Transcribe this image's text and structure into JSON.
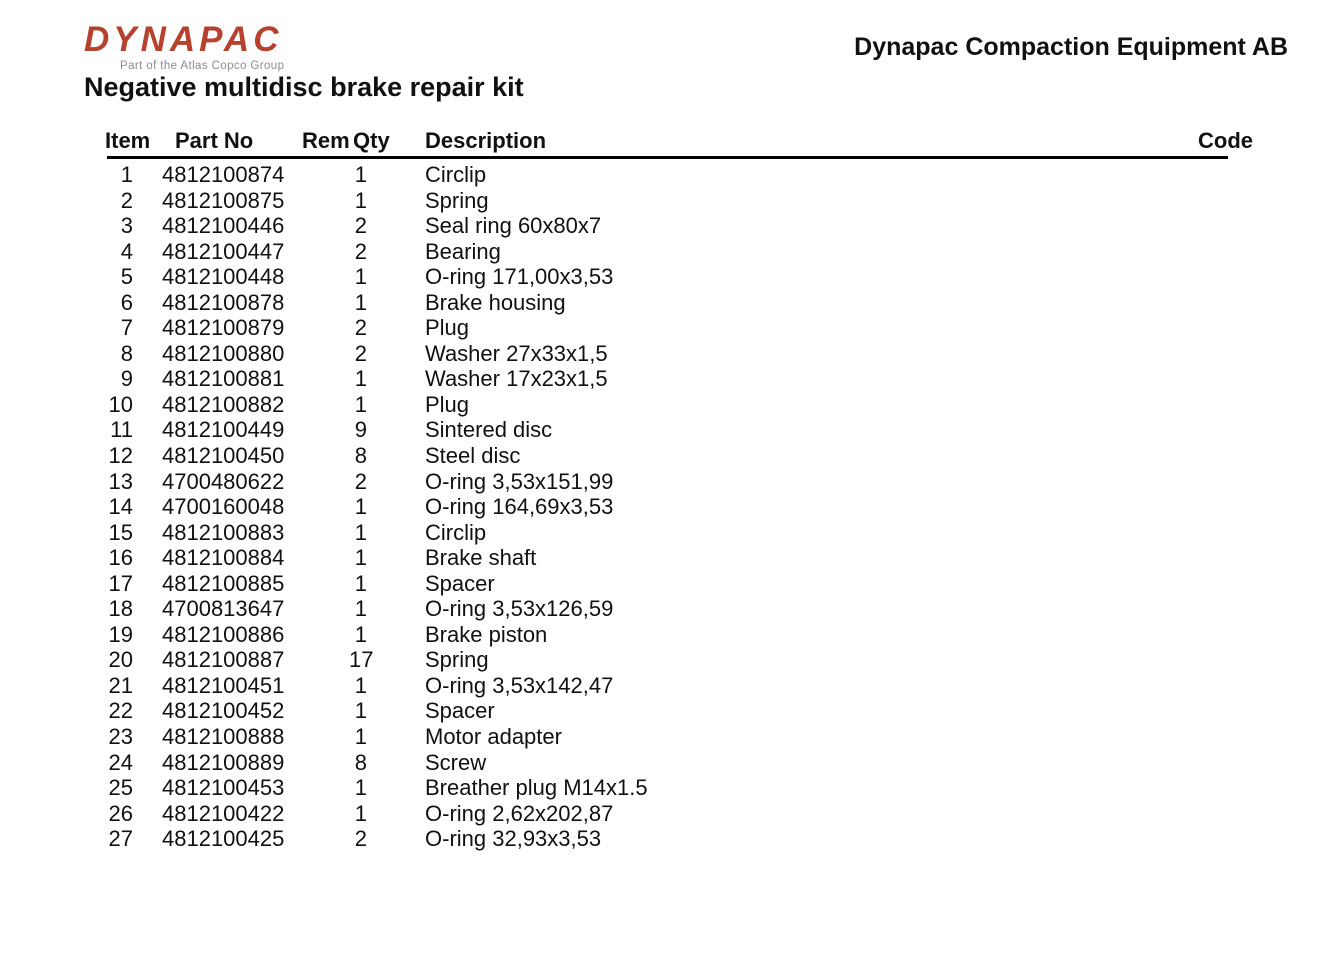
{
  "branding": {
    "logo_text": "DYNAPAC",
    "logo_tagline": "Part of the Atlas Copco Group",
    "logo_color": "#b5412e",
    "tagline_color": "#8b8b94"
  },
  "header": {
    "company": "Dynapac Compaction Equipment AB",
    "title": "Negative multidisc brake repair kit"
  },
  "table": {
    "headers": {
      "item": "Item",
      "part_no": "Part No",
      "rem": "Rem",
      "qty": "Qty",
      "description": "Description",
      "code": "Code"
    },
    "rows": [
      {
        "item": "1",
        "part_no": "4812100874",
        "rem": "",
        "qty": "1",
        "description": "Circlip",
        "code": ""
      },
      {
        "item": "2",
        "part_no": "4812100875",
        "rem": "",
        "qty": "1",
        "description": "Spring",
        "code": ""
      },
      {
        "item": "3",
        "part_no": "4812100446",
        "rem": "",
        "qty": "2",
        "description": "Seal ring 60x80x7",
        "code": ""
      },
      {
        "item": "4",
        "part_no": "4812100447",
        "rem": "",
        "qty": "2",
        "description": "Bearing",
        "code": ""
      },
      {
        "item": "5",
        "part_no": "4812100448",
        "rem": "",
        "qty": "1",
        "description": "O-ring 171,00x3,53",
        "code": ""
      },
      {
        "item": "6",
        "part_no": "4812100878",
        "rem": "",
        "qty": "1",
        "description": "Brake housing",
        "code": ""
      },
      {
        "item": "7",
        "part_no": "4812100879",
        "rem": "",
        "qty": "2",
        "description": "Plug",
        "code": ""
      },
      {
        "item": "8",
        "part_no": "4812100880",
        "rem": "",
        "qty": "2",
        "description": "Washer 27x33x1,5",
        "code": ""
      },
      {
        "item": "9",
        "part_no": "4812100881",
        "rem": "",
        "qty": "1",
        "description": "Washer 17x23x1,5",
        "code": ""
      },
      {
        "item": "10",
        "part_no": "4812100882",
        "rem": "",
        "qty": "1",
        "description": "Plug",
        "code": ""
      },
      {
        "item": "11",
        "part_no": "4812100449",
        "rem": "",
        "qty": "9",
        "description": "Sintered disc",
        "code": ""
      },
      {
        "item": "12",
        "part_no": "4812100450",
        "rem": "",
        "qty": "8",
        "description": "Steel disc",
        "code": ""
      },
      {
        "item": "13",
        "part_no": "4700480622",
        "rem": "",
        "qty": "2",
        "description": "O-ring 3,53x151,99",
        "code": ""
      },
      {
        "item": "14",
        "part_no": "4700160048",
        "rem": "",
        "qty": "1",
        "description": "O-ring 164,69x3,53",
        "code": ""
      },
      {
        "item": "15",
        "part_no": "4812100883",
        "rem": "",
        "qty": "1",
        "description": "Circlip",
        "code": ""
      },
      {
        "item": "16",
        "part_no": "4812100884",
        "rem": "",
        "qty": "1",
        "description": "Brake shaft",
        "code": ""
      },
      {
        "item": "17",
        "part_no": "4812100885",
        "rem": "",
        "qty": "1",
        "description": "Spacer",
        "code": ""
      },
      {
        "item": "18",
        "part_no": "4700813647",
        "rem": "",
        "qty": "1",
        "description": "O-ring 3,53x126,59",
        "code": ""
      },
      {
        "item": "19",
        "part_no": "4812100886",
        "rem": "",
        "qty": "1",
        "description": "Brake piston",
        "code": ""
      },
      {
        "item": "20",
        "part_no": "4812100887",
        "rem": "",
        "qty": "17",
        "description": "Spring",
        "code": ""
      },
      {
        "item": "21",
        "part_no": "4812100451",
        "rem": "",
        "qty": "1",
        "description": "O-ring 3,53x142,47",
        "code": ""
      },
      {
        "item": "22",
        "part_no": "4812100452",
        "rem": "",
        "qty": "1",
        "description": "Spacer",
        "code": ""
      },
      {
        "item": "23",
        "part_no": "4812100888",
        "rem": "",
        "qty": "1",
        "description": "Motor adapter",
        "code": ""
      },
      {
        "item": "24",
        "part_no": "4812100889",
        "rem": "",
        "qty": "8",
        "description": "Screw",
        "code": ""
      },
      {
        "item": "25",
        "part_no": "4812100453",
        "rem": "",
        "qty": "1",
        "description": "Breather plug M14x1.5",
        "code": ""
      },
      {
        "item": "26",
        "part_no": "4812100422",
        "rem": "",
        "qty": "1",
        "description": "O-ring 2,62x202,87",
        "code": ""
      },
      {
        "item": "27",
        "part_no": "4812100425",
        "rem": "",
        "qty": "2",
        "description": "O-ring 32,93x3,53",
        "code": ""
      }
    ]
  }
}
